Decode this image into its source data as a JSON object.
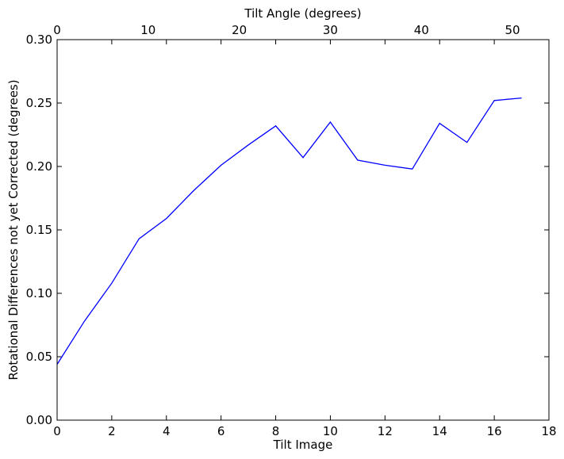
{
  "chart_data": {
    "type": "line",
    "title": "",
    "xlabel": "Tilt Image",
    "ylabel": "Rotational Differences not yet Corrected (degrees)",
    "top_xlabel": "Tilt Angle (degrees)",
    "xlim": [
      0,
      18
    ],
    "ylim": [
      0.0,
      0.3
    ],
    "top_xlim": [
      0,
      54
    ],
    "xticks": [
      0,
      2,
      4,
      6,
      8,
      10,
      12,
      14,
      16,
      18
    ],
    "xtick_labels": [
      "0",
      "2",
      "4",
      "6",
      "8",
      "10",
      "12",
      "14",
      "16",
      "18"
    ],
    "yticks": [
      0.0,
      0.05,
      0.1,
      0.15,
      0.2,
      0.25,
      0.3
    ],
    "ytick_labels": [
      "0.00",
      "0.05",
      "0.10",
      "0.15",
      "0.20",
      "0.25",
      "0.30"
    ],
    "top_xticks": [
      0,
      10,
      20,
      30,
      40,
      50
    ],
    "top_xtick_labels": [
      "0",
      "10",
      "20",
      "30",
      "40",
      "50"
    ],
    "grid": false,
    "legend": "none",
    "line_color": "#0000ff",
    "series": [
      {
        "x": [
          0,
          1,
          2,
          3,
          4,
          5,
          6,
          7,
          8,
          9,
          10,
          11,
          12,
          13,
          14,
          15,
          16,
          17
        ],
        "values": [
          0.044,
          0.078,
          0.108,
          0.143,
          0.159,
          0.181,
          0.201,
          0.217,
          0.232,
          0.207,
          0.235,
          0.205,
          0.201,
          0.198,
          0.234,
          0.219,
          0.252,
          0.254
        ]
      }
    ]
  }
}
